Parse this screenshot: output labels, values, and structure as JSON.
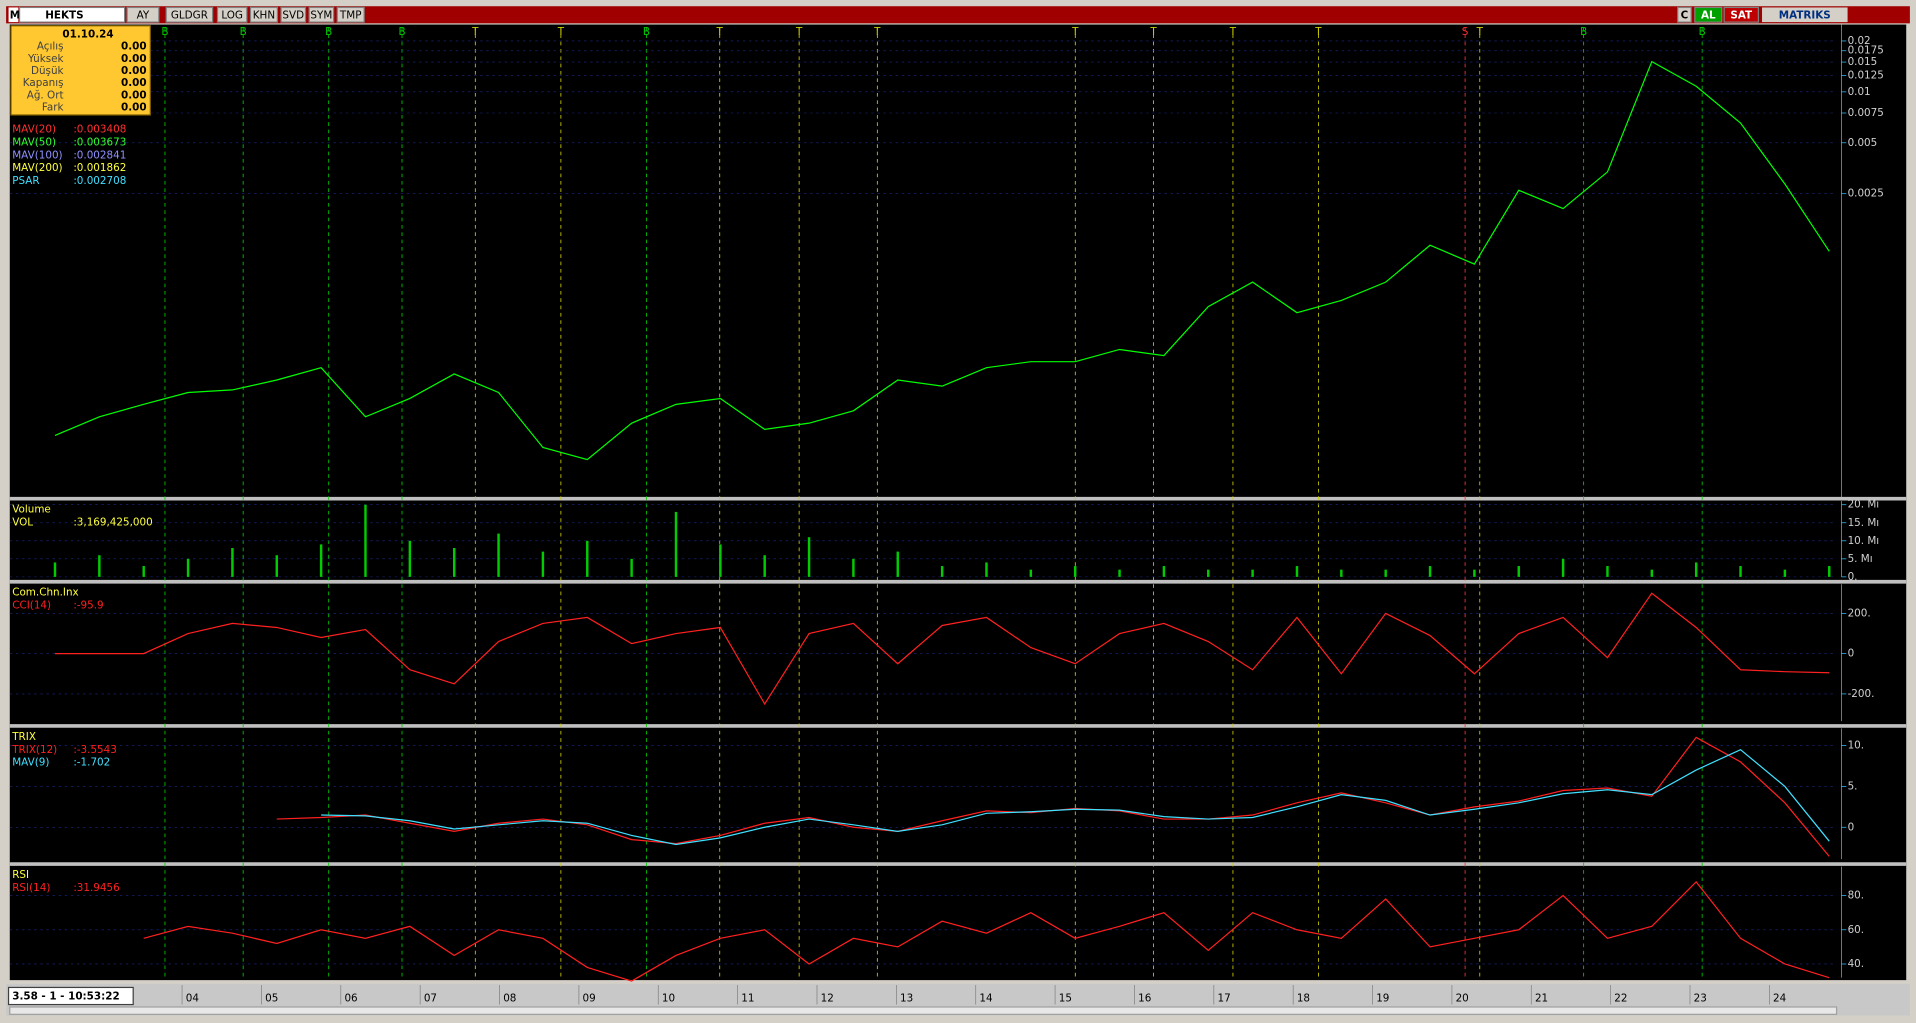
{
  "toolbar": {
    "logo": "M",
    "symbol": "HEKTS",
    "buttons": [
      "AY",
      "GLDGR",
      "LOG",
      "KHN",
      "SVD",
      "SYM",
      "TMP"
    ],
    "right_buttons": [
      "C",
      "AL",
      "SAT"
    ],
    "brand": "MATRIKS"
  },
  "info_box": {
    "date": "01.10.24",
    "rows": [
      [
        "Açılış",
        "0.00"
      ],
      [
        "Yüksek",
        "0.00"
      ],
      [
        "Düşük",
        "0.00"
      ],
      [
        "Kapanış",
        "0.00"
      ],
      [
        "Ağ. Ort",
        "0.00"
      ],
      [
        "Fark",
        "0.00"
      ]
    ]
  },
  "chart_data": [
    {
      "type": "line",
      "log_scale": true,
      "ylim": [
        4e-05,
        0.025
      ],
      "yticks": [
        0.02,
        0.0175,
        0.015,
        0.0125,
        0.01,
        0.0075,
        0.005,
        0.0025
      ],
      "grid": true,
      "color": "#00ff00",
      "values": [
        9.3e-05,
        0.00012,
        0.000142,
        0.000167,
        0.000173,
        0.000198,
        0.000234,
        0.00012,
        0.000154,
        0.000215,
        0.000167,
        7.9e-05,
        6.7e-05,
        0.00011,
        0.000142,
        0.000154,
        0.000101,
        0.00011,
        0.00013,
        0.000198,
        0.000182,
        0.000234,
        0.000254,
        0.000254,
        0.0003,
        0.000276,
        0.000538,
        0.00075,
        0.000495,
        0.000584,
        0.00075,
        0.00124,
        0.00096,
        0.00262,
        0.00204,
        0.00336,
        0.0151,
        0.0108,
        0.00654,
        0.00285,
        0.00114
      ],
      "indicators": [
        {
          "name": "MAV(20)",
          "reading": ":0.003408",
          "color": "#ff3030"
        },
        {
          "name": "MAV(50)",
          "reading": ":0.003673",
          "color": "#30ff30"
        },
        {
          "name": "MAV(100)",
          "reading": ":0.002841",
          "color": "#9090ff"
        },
        {
          "name": "MAV(200)",
          "reading": ":0.001862",
          "color": "#ffff40"
        },
        {
          "name": "PSAR",
          "reading": ":0.002708",
          "color": "#40e0ff"
        }
      ]
    },
    {
      "type": "bar",
      "title": "Volume",
      "ylim": [
        0,
        21
      ],
      "grid": true,
      "color": "#00cc00",
      "yticks": [
        {
          "value": 20,
          "label": "20. Mı"
        },
        {
          "value": 15,
          "label": "15. Mı"
        },
        {
          "value": 10,
          "label": "10. Mı"
        },
        {
          "value": 5,
          "label": "5. Mı"
        },
        {
          "value": 0,
          "label": "0."
        }
      ],
      "values": [
        4,
        6,
        3,
        5,
        8,
        6,
        9,
        20,
        10,
        8,
        12,
        7,
        10,
        5,
        18,
        9,
        6,
        11,
        5,
        7,
        3,
        4,
        2,
        3,
        2,
        3,
        2,
        2,
        3,
        2,
        2,
        3,
        2,
        3,
        5,
        3,
        2,
        4,
        3,
        2,
        3
      ],
      "indicators": [
        {
          "name": "VOL",
          "reading": ":3,169,425,000",
          "color": "#ffff40"
        }
      ]
    },
    {
      "type": "line",
      "title": "Com.Chn.Inx",
      "ylim": [
        -335,
        345
      ],
      "grid": true,
      "yticks": [
        {
          "value": 200,
          "label": "200."
        },
        0,
        {
          "value": -200,
          "label": "-200."
        }
      ],
      "series": [
        {
          "name": "CCI(14)",
          "reading": ":-95.9",
          "color": "#ff2020",
          "values": [
            0,
            0,
            0,
            100,
            150,
            130,
            80,
            120,
            -80,
            -150,
            60,
            150,
            180,
            50,
            100,
            130,
            -250,
            100,
            150,
            -50,
            140,
            180,
            30,
            -50,
            100,
            150,
            60,
            -80,
            180,
            -100,
            200,
            90,
            -100,
            100,
            180,
            -20,
            300,
            130,
            -80,
            -90,
            -95
          ]
        }
      ]
    },
    {
      "type": "line",
      "title": "TRIX",
      "ylim": [
        -3.9,
        12.1
      ],
      "grid": true,
      "yticks": [
        {
          "value": 10,
          "label": "10."
        },
        {
          "value": 5,
          "label": "5."
        },
        0
      ],
      "series": [
        {
          "name": "TRIX(12)",
          "reading": ":-3.5543",
          "color": "#ff2020",
          "values": [
            null,
            null,
            null,
            null,
            null,
            1,
            1.2,
            1.5,
            0.5,
            -0.5,
            0.5,
            1,
            0.3,
            -1.5,
            -2,
            -1,
            0.5,
            1.2,
            0,
            -0.5,
            0.8,
            2,
            1.8,
            2.3,
            2,
            1,
            1,
            1.5,
            3,
            4.2,
            3,
            1.5,
            2.5,
            3.2,
            4.5,
            4.8,
            3.8,
            11,
            8,
            3,
            -3.55
          ]
        },
        {
          "name": "MAV(9)",
          "reading": ":-1.702",
          "color": "#40e0ff",
          "values": [
            null,
            null,
            null,
            null,
            null,
            null,
            1.5,
            1.4,
            0.8,
            -0.2,
            0.3,
            0.8,
            0.5,
            -1,
            -2.1,
            -1.3,
            0,
            1,
            0.3,
            -0.5,
            0.3,
            1.7,
            1.9,
            2.2,
            2.1,
            1.3,
            1,
            1.2,
            2.5,
            4,
            3.3,
            1.5,
            2.2,
            3,
            4.1,
            4.6,
            4,
            7,
            9.5,
            5,
            -1.7
          ]
        }
      ]
    },
    {
      "type": "line",
      "title": "RSI",
      "ylim": [
        32,
        97
      ],
      "grid": true,
      "yticks": [
        {
          "value": 80,
          "label": "80."
        },
        {
          "value": 60,
          "label": "60."
        },
        {
          "value": 40,
          "label": "40."
        }
      ],
      "series": [
        {
          "name": "RSI(14)",
          "reading": ":31.9456",
          "color": "#ff2020",
          "values": [
            null,
            null,
            55,
            62,
            58,
            52,
            60,
            55,
            62,
            45,
            60,
            55,
            38,
            30,
            45,
            55,
            60,
            40,
            55,
            50,
            65,
            58,
            70,
            55,
            62,
            70,
            48,
            70,
            60,
            55,
            78,
            50,
            55,
            60,
            80,
            55,
            62,
            88,
            55,
            40,
            32
          ]
        }
      ]
    }
  ],
  "signals": [
    "B",
    "B",
    "B",
    "B",
    "T",
    "T",
    "B",
    "T",
    "T",
    "T",
    "T",
    "T",
    "T",
    "T",
    "S",
    "T",
    "B",
    "B"
  ],
  "x_labels": [
    "04",
    "05",
    "06",
    "07",
    "08",
    "09",
    "10",
    "11",
    "12",
    "13",
    "14",
    "15",
    "16",
    "17",
    "18",
    "19",
    "20",
    "21",
    "22",
    "23",
    "24"
  ],
  "status": "3.58 - 1 - 10:53:22"
}
